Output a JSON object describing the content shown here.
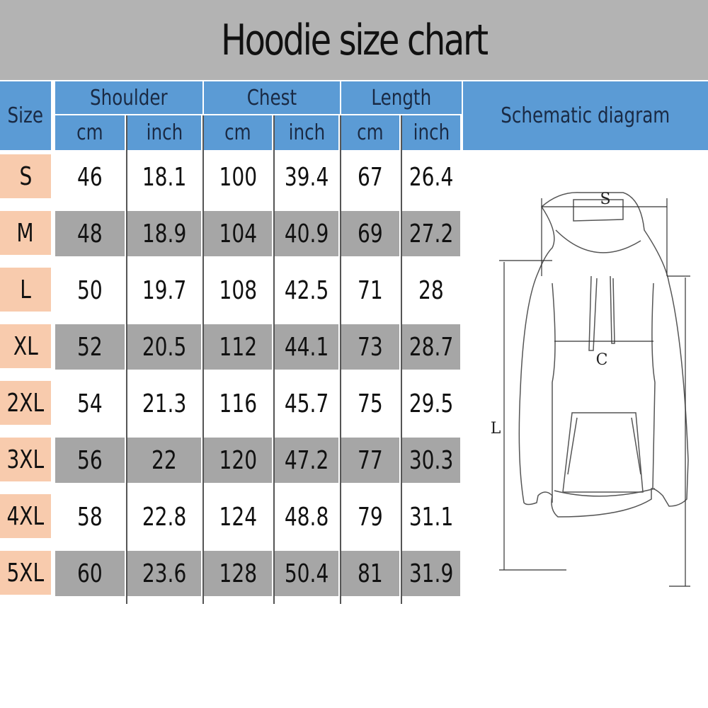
{
  "title": "Hoodie size chart",
  "headers": {
    "size": "Size",
    "shoulder": "Shoulder",
    "chest": "Chest",
    "length": "Length",
    "cm": "cm",
    "inch": "inch",
    "diagram": "Schematic diagram"
  },
  "rows": [
    [
      "S",
      "46",
      "18.1",
      "100",
      "39.4",
      "67",
      "26.4"
    ],
    [
      "M",
      "48",
      "18.9",
      "104",
      "40.9",
      "69",
      "27.2"
    ],
    [
      "L",
      "50",
      "19.7",
      "108",
      "42.5",
      "71",
      "28"
    ],
    [
      "XL",
      "52",
      "20.5",
      "112",
      "44.1",
      "73",
      "28.7"
    ],
    [
      "2XL",
      "54",
      "21.3",
      "116",
      "45.7",
      "75",
      "29.5"
    ],
    [
      "3XL",
      "56",
      "22",
      "120",
      "47.2",
      "77",
      "30.3"
    ],
    [
      "4XL",
      "58",
      "22.8",
      "124",
      "48.8",
      "79",
      "31.1"
    ],
    [
      "5XL",
      "60",
      "23.6",
      "128",
      "50.4",
      "81",
      "31.9"
    ]
  ],
  "diagram": {
    "shoulder_label": "S",
    "chest_label": "C",
    "length_label": "L"
  },
  "colors": {
    "header": "#5b9bd5",
    "size_col": "#f8cbad",
    "stripe": "#a6a6a6",
    "title_bar": "#b3b3b3"
  }
}
